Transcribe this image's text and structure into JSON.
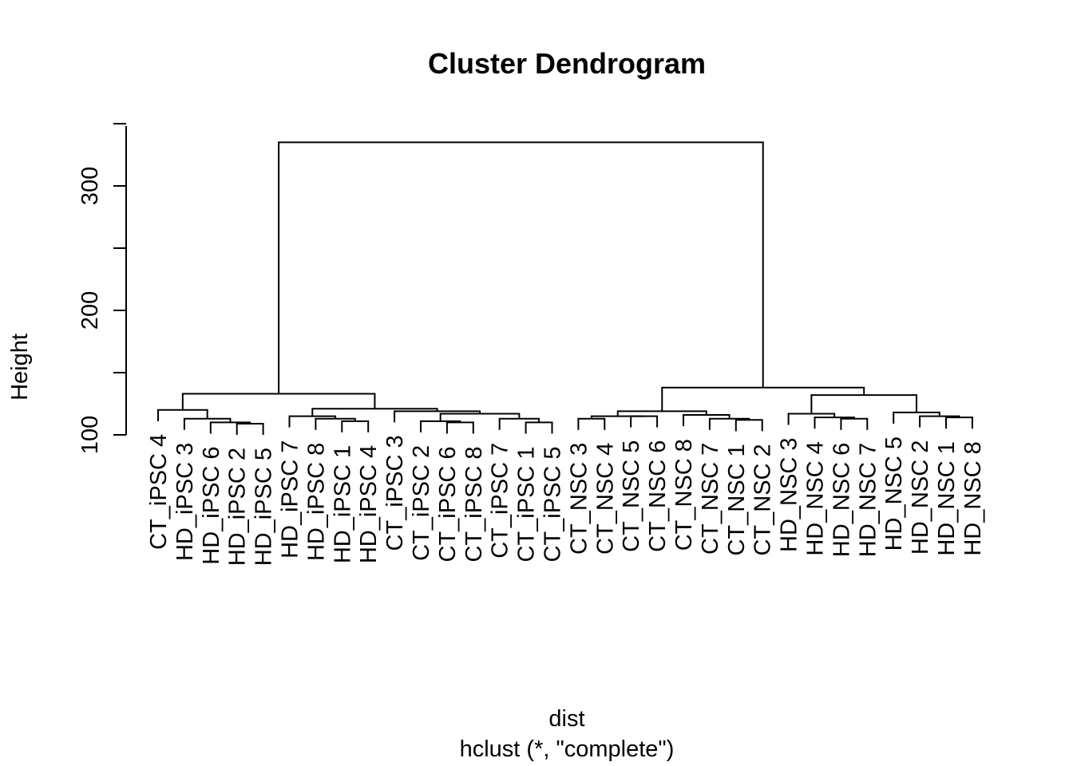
{
  "chart_data": {
    "type": "dendrogram",
    "title": "Cluster Dendrogram",
    "xlabel": "dist",
    "sublabel": "hclust (*, \"complete\")",
    "ylabel": "Height",
    "yticks": [
      100,
      200,
      300
    ],
    "ylim": [
      100,
      335
    ],
    "leaves": [
      "CT_iPSC 4",
      "HD_iPSC 3",
      "HD_iPSC 6",
      "HD_iPSC 2",
      "HD_iPSC 5",
      "HD_iPSC 7",
      "HD_iPSC 8",
      "HD_iPSC 1",
      "HD_iPSC 4",
      "CT_iPSC 3",
      "CT_iPSC 2",
      "CT_iPSC 6",
      "CT_iPSC 8",
      "CT_iPSC 7",
      "CT_iPSC 1",
      "CT_iPSC 5",
      "CT_NSC 3",
      "CT_NSC 4",
      "CT_NSC 5",
      "CT_NSC 6",
      "CT_NSC 8",
      "CT_NSC 7",
      "CT_NSC 1",
      "CT_NSC 2",
      "HD_NSC 3",
      "HD_NSC 4",
      "HD_NSC 6",
      "HD_NSC 7",
      "HD_NSC 5",
      "HD_NSC 2",
      "HD_NSC 1",
      "HD_NSC 8"
    ],
    "merges": [
      {
        "left": -4,
        "right": -5,
        "height": 109
      },
      {
        "left": -3,
        "right": 1,
        "height": 110
      },
      {
        "left": -2,
        "right": 2,
        "height": 113
      },
      {
        "left": -1,
        "right": 3,
        "height": 120
      },
      {
        "left": -8,
        "right": -9,
        "height": 111
      },
      {
        "left": -7,
        "right": 5,
        "height": 113
      },
      {
        "left": -6,
        "right": 6,
        "height": 115
      },
      {
        "left": -12,
        "right": -13,
        "height": 110
      },
      {
        "left": -11,
        "right": 8,
        "height": 111
      },
      {
        "left": -15,
        "right": -16,
        "height": 110
      },
      {
        "left": -14,
        "right": 10,
        "height": 113
      },
      {
        "left": 9,
        "right": 11,
        "height": 117
      },
      {
        "left": -10,
        "right": 12,
        "height": 119
      },
      {
        "left": 7,
        "right": 13,
        "height": 121
      },
      {
        "left": 4,
        "right": 14,
        "height": 133
      },
      {
        "left": -17,
        "right": -18,
        "height": 113
      },
      {
        "left": -19,
        "right": -20,
        "height": 115
      },
      {
        "left": 16,
        "right": 17,
        "height": 115
      },
      {
        "left": -23,
        "right": -24,
        "height": 112
      },
      {
        "left": -22,
        "right": 19,
        "height": 113
      },
      {
        "left": -21,
        "right": 20,
        "height": 116
      },
      {
        "left": 18,
        "right": 21,
        "height": 119
      },
      {
        "left": -27,
        "right": -28,
        "height": 113
      },
      {
        "left": -26,
        "right": 23,
        "height": 114
      },
      {
        "left": -25,
        "right": 24,
        "height": 117
      },
      {
        "left": -31,
        "right": -32,
        "height": 114
      },
      {
        "left": -30,
        "right": 26,
        "height": 115
      },
      {
        "left": -29,
        "right": 27,
        "height": 118
      },
      {
        "left": 25,
        "right": 28,
        "height": 132
      },
      {
        "left": 22,
        "right": 29,
        "height": 138
      },
      {
        "left": 15,
        "right": 30,
        "height": 335
      }
    ],
    "hang": 3,
    "grid": false
  }
}
